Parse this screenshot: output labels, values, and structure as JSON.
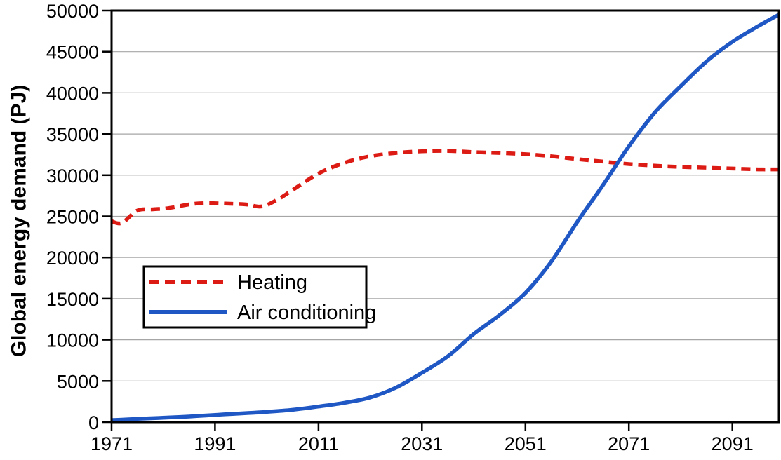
{
  "figure": {
    "background": "#ffffff",
    "grid_color": "#a6a6a6",
    "axis_color": "#000000"
  },
  "chart_data": {
    "type": "line",
    "title": "",
    "xlabel": "",
    "ylabel": "Global energy demand (PJ)",
    "xlim": [
      1971,
      2100
    ],
    "ylim": [
      0,
      50000
    ],
    "xticks": [
      1971,
      1991,
      2011,
      2031,
      2051,
      2071,
      2091
    ],
    "yticks": [
      0,
      5000,
      10000,
      15000,
      20000,
      25000,
      30000,
      35000,
      40000,
      45000,
      50000
    ],
    "grid": "horizontal-only",
    "legend_position": "inside-middle-left",
    "x": [
      1971,
      1973,
      1976,
      1979,
      1982,
      1986,
      1989,
      1993,
      1997,
      2000,
      2003,
      2006,
      2011,
      2016,
      2021,
      2026,
      2031,
      2036,
      2041,
      2046,
      2051,
      2056,
      2061,
      2066,
      2071,
      2076,
      2081,
      2086,
      2091,
      2096,
      2100
    ],
    "series": [
      {
        "name": "Heating",
        "color": "#dc1b15",
        "style": "dashed",
        "values": [
          24400,
          24200,
          25700,
          25850,
          26000,
          26450,
          26600,
          26550,
          26450,
          26200,
          27000,
          28200,
          30200,
          31500,
          32300,
          32700,
          32900,
          32950,
          32800,
          32700,
          32550,
          32300,
          31950,
          31650,
          31350,
          31150,
          31000,
          30900,
          30800,
          30700,
          30700
        ]
      },
      {
        "name": "Air conditioning",
        "color": "#1f57c4",
        "style": "solid",
        "values": [
          250,
          300,
          400,
          480,
          560,
          680,
          800,
          950,
          1100,
          1200,
          1350,
          1500,
          1900,
          2350,
          3000,
          4200,
          6000,
          8000,
          10700,
          13000,
          15700,
          19500,
          24300,
          28800,
          33500,
          37600,
          40800,
          43800,
          46200,
          48100,
          49500
        ]
      }
    ]
  }
}
